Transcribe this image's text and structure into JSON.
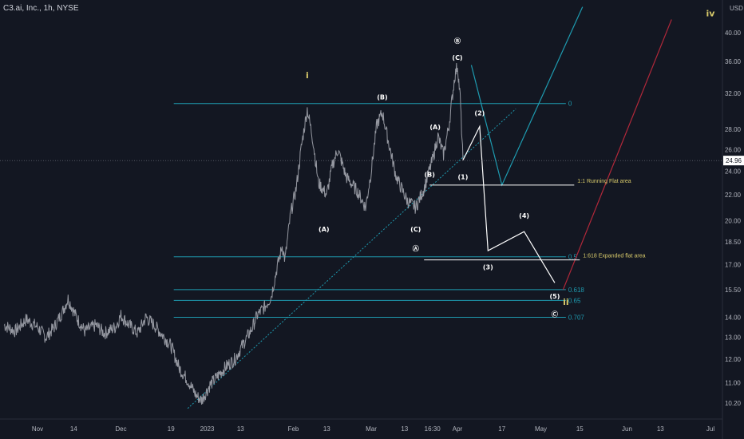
{
  "header": {
    "title": "C3.ai, Inc., 1h, NYSE",
    "currency": "USD"
  },
  "colors": {
    "background": "#131722",
    "price": "#9598a1",
    "fib": "#1e9bb0",
    "wave": "#ffffff",
    "trend": "#1e9bb0",
    "red": "#b2283a",
    "label": "#ffffff",
    "yellow": "#d7c96a",
    "axis_text": "#b2b5be",
    "current_bg": "#ffffff"
  },
  "chart_data": {
    "type": "line",
    "title": "C3.ai, Inc., 1h, NYSE",
    "y_scale": "log",
    "ylim": [
      9.9,
      44.5
    ],
    "y_ticks": [
      10.2,
      11.0,
      12.0,
      13.0,
      14.0,
      15.5,
      17.0,
      18.5,
      20.0,
      22.0,
      24.0,
      26.0,
      28.0,
      32.0,
      36.0,
      40.0
    ],
    "x_ticks": [
      {
        "label": "Nov",
        "date": "2022-11-01"
      },
      {
        "label": "14",
        "date": "2022-11-14"
      },
      {
        "label": "Dec",
        "date": "2022-12-01"
      },
      {
        "label": "19",
        "date": "2022-12-19"
      },
      {
        "label": "2023",
        "date": "2023-01-01"
      },
      {
        "label": "13",
        "date": "2023-01-13"
      },
      {
        "label": "Feb",
        "date": "2023-02-01"
      },
      {
        "label": "13",
        "date": "2023-02-13"
      },
      {
        "label": "Mar",
        "date": "2023-03-01"
      },
      {
        "label": "13",
        "date": "2023-03-13"
      },
      {
        "label": "16:30",
        "date": "2023-03-23"
      },
      {
        "label": "Apr",
        "date": "2023-04-01"
      },
      {
        "label": "17",
        "date": "2023-04-17"
      },
      {
        "label": "May",
        "date": "2023-05-01"
      },
      {
        "label": "15",
        "date": "2023-05-15"
      },
      {
        "label": "Jun",
        "date": "2023-06-01"
      },
      {
        "label": "13",
        "date": "2023-06-13"
      },
      {
        "label": "Jul",
        "date": "2023-07-01"
      }
    ],
    "current_price": 24.96,
    "current_price_label": "24.96",
    "price_series": [
      [
        "2022-10-20",
        13.6
      ],
      [
        "2022-10-24",
        13.3
      ],
      [
        "2022-10-28",
        13.9
      ],
      [
        "2022-11-01",
        13.5
      ],
      [
        "2022-11-04",
        13.0
      ],
      [
        "2022-11-07",
        13.5
      ],
      [
        "2022-11-10",
        14.3
      ],
      [
        "2022-11-12",
        15.0
      ],
      [
        "2022-11-15",
        14.0
      ],
      [
        "2022-11-18",
        13.3
      ],
      [
        "2022-11-22",
        13.6
      ],
      [
        "2022-11-25",
        13.2
      ],
      [
        "2022-11-29",
        13.5
      ],
      [
        "2022-12-01",
        14.1
      ],
      [
        "2022-12-04",
        13.6
      ],
      [
        "2022-12-07",
        13.2
      ],
      [
        "2022-12-10",
        14.0
      ],
      [
        "2022-12-13",
        13.6
      ],
      [
        "2022-12-16",
        13.1
      ],
      [
        "2022-12-19",
        12.6
      ],
      [
        "2022-12-22",
        11.6
      ],
      [
        "2022-12-25",
        11.1
      ],
      [
        "2022-12-28",
        10.5
      ],
      [
        "2022-12-30",
        10.3
      ],
      [
        "2023-01-02",
        10.9
      ],
      [
        "2023-01-05",
        11.3
      ],
      [
        "2023-01-08",
        11.7
      ],
      [
        "2023-01-11",
        12.0
      ],
      [
        "2023-01-14",
        12.7
      ],
      [
        "2023-01-17",
        13.4
      ],
      [
        "2023-01-19",
        14.1
      ],
      [
        "2023-01-22",
        14.6
      ],
      [
        "2023-01-24",
        15.1
      ],
      [
        "2023-01-26",
        16.7
      ],
      [
        "2023-01-28",
        18.2
      ],
      [
        "2023-01-29",
        17.3
      ],
      [
        "2023-01-31",
        20.5
      ],
      [
        "2023-02-02",
        22.5
      ],
      [
        "2023-02-04",
        26.5
      ],
      [
        "2023-02-06",
        30.2
      ],
      [
        "2023-02-08",
        27.0
      ],
      [
        "2023-02-10",
        23.0
      ],
      [
        "2023-02-13",
        22.0
      ],
      [
        "2023-02-15",
        24.5
      ],
      [
        "2023-02-17",
        26.0
      ],
      [
        "2023-02-20",
        23.5
      ],
      [
        "2023-02-24",
        22.3
      ],
      [
        "2023-02-27",
        21.0
      ],
      [
        "2023-03-01",
        24.0
      ],
      [
        "2023-03-03",
        28.5
      ],
      [
        "2023-03-05",
        29.8
      ],
      [
        "2023-03-07",
        27.0
      ],
      [
        "2023-03-10",
        23.5
      ],
      [
        "2023-03-14",
        21.5
      ],
      [
        "2023-03-17",
        21.0
      ],
      [
        "2023-03-20",
        22.5
      ],
      [
        "2023-03-23",
        25.0
      ],
      [
        "2023-03-25",
        27.3
      ],
      [
        "2023-03-27",
        25.5
      ],
      [
        "2023-03-29",
        28.5
      ],
      [
        "2023-03-31",
        34.0
      ],
      [
        "2023-04-01",
        35.5
      ],
      [
        "2023-04-02",
        31.5
      ],
      [
        "2023-04-03",
        25.0
      ]
    ],
    "trendline": {
      "from": [
        "2022-12-25",
        10.0
      ],
      "to": [
        "2023-04-22",
        30.2
      ]
    },
    "fib_levels": [
      {
        "value": 30.8,
        "label": "0"
      },
      {
        "value": 17.5,
        "label": "0.5"
      },
      {
        "value": 15.5,
        "label": "0.618"
      },
      {
        "value": 14.9,
        "label": "0.65"
      },
      {
        "value": 14.0,
        "label": "0.707"
      }
    ],
    "fib_x_range": [
      "2022-12-20",
      "2023-05-10"
    ],
    "projections": {
      "white_path": [
        [
          "2023-04-03",
          25.0
        ],
        [
          "2023-04-09",
          28.3
        ],
        [
          "2023-04-12",
          17.9
        ],
        [
          "2023-04-25",
          19.2
        ],
        [
          "2023-05-06",
          15.9
        ]
      ],
      "running_flat_line": {
        "from": [
          "2023-03-22",
          22.8
        ],
        "to": [
          "2023-05-13",
          22.8
        ],
        "label": "1:1 Running Flat area"
      },
      "expanded_flat_line": {
        "from": [
          "2023-03-20",
          17.3
        ],
        "to": [
          "2023-05-15",
          17.3
        ],
        "label": "1:618 Expanded flat area"
      },
      "blue_path": [
        [
          "2023-04-06",
          35.5
        ],
        [
          "2023-04-17",
          22.8
        ],
        [
          "2023-05-16",
          44.0
        ]
      ],
      "red_line": {
        "from": [
          "2023-05-09",
          15.5
        ],
        "to": [
          "2023-06-17",
          42.0
        ]
      }
    },
    "wave_labels": [
      {
        "text": "i",
        "at": [
          "2023-02-06",
          33.8
        ],
        "color": "yellow"
      },
      {
        "text": "(B)",
        "at": [
          "2023-03-05",
          31.3
        ],
        "color": "white"
      },
      {
        "text": "Ⓑ",
        "at": [
          "2023-04-01",
          38.5
        ],
        "color": "white"
      },
      {
        "text": "(C)",
        "at": [
          "2023-04-01",
          36.2
        ],
        "color": "white"
      },
      {
        "text": "(2)",
        "at": [
          "2023-04-09",
          29.5
        ],
        "color": "white"
      },
      {
        "text": "(A)",
        "at": [
          "2023-03-24",
          28.0
        ],
        "color": "white"
      },
      {
        "text": "(B)",
        "at": [
          "2023-03-22",
          23.5
        ],
        "color": "white"
      },
      {
        "text": "(1)",
        "at": [
          "2023-04-03",
          23.3
        ],
        "color": "white"
      },
      {
        "text": "(A)",
        "at": [
          "2023-02-12",
          19.2
        ],
        "color": "white"
      },
      {
        "text": "(C)",
        "at": [
          "2023-03-17",
          19.2
        ],
        "color": "white"
      },
      {
        "text": "Ⓐ",
        "at": [
          "2023-03-17",
          17.9
        ],
        "color": "white"
      },
      {
        "text": "(4)",
        "at": [
          "2023-04-25",
          20.2
        ],
        "color": "white"
      },
      {
        "text": "(3)",
        "at": [
          "2023-04-12",
          16.7
        ],
        "color": "white"
      },
      {
        "text": "(5)",
        "at": [
          "2023-05-06",
          15.0
        ],
        "color": "white"
      },
      {
        "text": "ii",
        "at": [
          "2023-05-10",
          14.65
        ],
        "color": "yellow"
      },
      {
        "text": "Ⓒ",
        "at": [
          "2023-05-06",
          14.05
        ],
        "color": "white"
      },
      {
        "text": "iv",
        "at": [
          "2023-07-01",
          42.5
        ],
        "color": "yellow"
      }
    ],
    "grid": false,
    "legend": "none"
  }
}
